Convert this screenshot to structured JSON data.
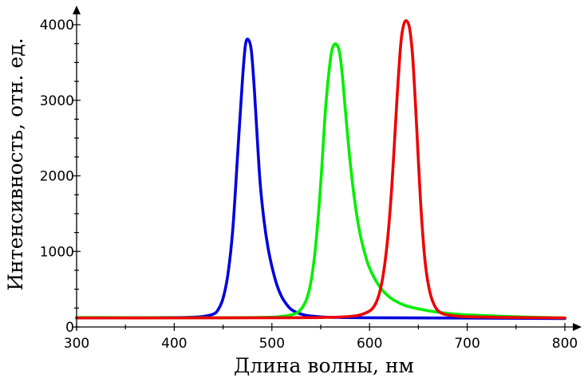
{
  "chart_data": {
    "type": "line",
    "xlabel": "Длина волны, нм",
    "ylabel": "Интенсивность, отн. ед.",
    "xlim": [
      300,
      800
    ],
    "ylim": [
      0,
      4000
    ],
    "x_ticks": [
      300,
      400,
      500,
      600,
      700,
      800
    ],
    "y_ticks": [
      0,
      1000,
      2000,
      3000,
      4000
    ],
    "x_tick_labels": [
      "300",
      "400",
      "500",
      "600",
      "700",
      "800"
    ],
    "y_tick_labels": [
      "0",
      "1000",
      "2000",
      "3000",
      "4000"
    ],
    "grid": false,
    "legend": "none",
    "series": [
      {
        "color": "#0000dd",
        "x": [
          300,
          400,
          420,
          430,
          440,
          445,
          450,
          455,
          460,
          465,
          470,
          473,
          476,
          479,
          482,
          485,
          488,
          492,
          496,
          500,
          505,
          510,
          515,
          520,
          530,
          540,
          560,
          600,
          700,
          800
        ],
        "y": [
          120,
          125,
          130,
          140,
          170,
          230,
          380,
          700,
          1300,
          2300,
          3300,
          3740,
          3800,
          3650,
          3150,
          2500,
          1900,
          1400,
          1050,
          800,
          560,
          400,
          300,
          230,
          170,
          145,
          128,
          122,
          118,
          112
        ]
      },
      {
        "color": "#00ee00",
        "x": [
          300,
          400,
          450,
          480,
          500,
          510,
          520,
          528,
          535,
          540,
          545,
          550,
          555,
          560,
          563,
          566,
          569,
          572,
          575,
          580,
          585,
          590,
          595,
          600,
          610,
          620,
          630,
          640,
          660,
          680,
          700,
          750,
          800
        ],
        "y": [
          125,
          122,
          122,
          125,
          130,
          140,
          160,
          210,
          350,
          600,
          1100,
          1900,
          2900,
          3550,
          3720,
          3740,
          3650,
          3350,
          2900,
          2200,
          1650,
          1250,
          980,
          780,
          540,
          400,
          320,
          270,
          215,
          180,
          160,
          135,
          120
        ]
      },
      {
        "color": "#ee0000",
        "x": [
          300,
          400,
          500,
          550,
          580,
          595,
          605,
          612,
          618,
          623,
          628,
          632,
          635,
          638,
          641,
          644,
          647,
          650,
          653,
          657,
          662,
          668,
          675,
          685,
          700,
          750,
          800
        ],
        "y": [
          120,
          120,
          122,
          125,
          140,
          180,
          280,
          550,
          1100,
          1900,
          3000,
          3750,
          4000,
          4050,
          3950,
          3600,
          2950,
          2200,
          1500,
          850,
          450,
          250,
          175,
          150,
          135,
          125,
          120
        ]
      }
    ]
  }
}
